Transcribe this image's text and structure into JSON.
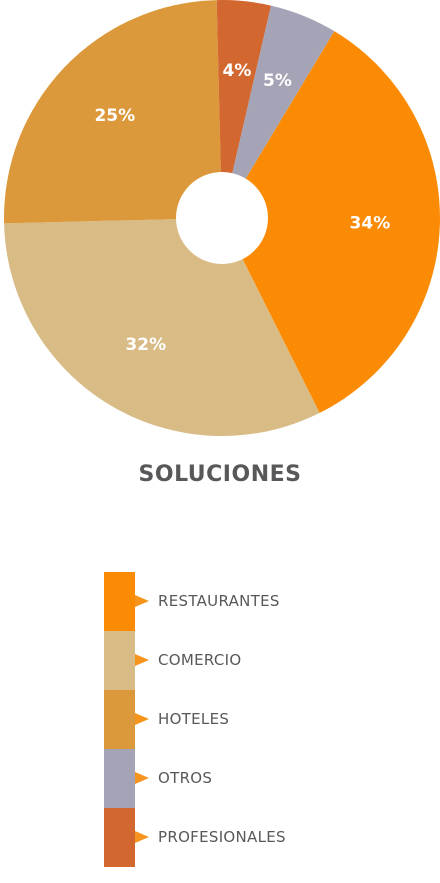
{
  "chart_data": {
    "type": "pie",
    "title": "SOLUCIONES",
    "legend_position": "bottom",
    "slices": [
      {
        "name": "RESTAURANTES",
        "value": 34,
        "label": "34%",
        "color": "#fb8b05"
      },
      {
        "name": "COMERCIO",
        "value": 32,
        "label": "32%",
        "color": "#d8bb85"
      },
      {
        "name": "HOTELES",
        "value": 25,
        "label": "25%",
        "color": "#dc993b"
      },
      {
        "name": "PROFESIONALES",
        "value": 4,
        "label": "4%",
        "color": "#d2672f"
      },
      {
        "name": "OTROS",
        "value": 5,
        "label": "5%",
        "color": "#a5a4b7"
      }
    ],
    "legend": [
      {
        "name": "RESTAURANTES",
        "color": "#fb8b05"
      },
      {
        "name": "COMERCIO",
        "color": "#d8bb85"
      },
      {
        "name": "HOTELES",
        "color": "#dc993b"
      },
      {
        "name": "OTROS",
        "color": "#a5a4b7"
      },
      {
        "name": "PROFESIONALES",
        "color": "#d2672f"
      }
    ],
    "pointer_color": "#f7941d"
  }
}
